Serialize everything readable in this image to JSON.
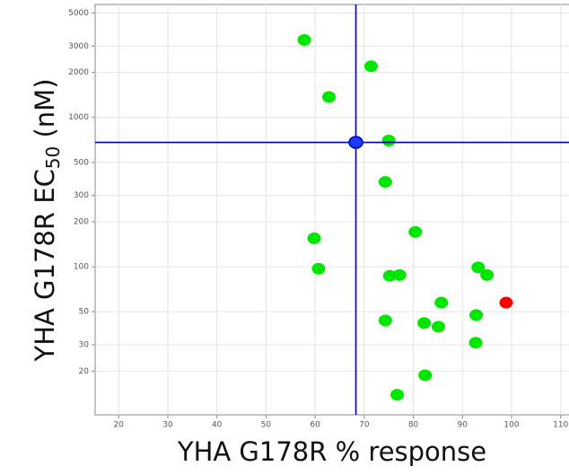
{
  "chart_data": {
    "type": "scatter",
    "xlabel": "YHA G178R % response",
    "ylabel": {
      "main": "YHA G178R EC",
      "sub": "50",
      "rest": " (nM)"
    },
    "xlim": [
      15.2,
      111.7
    ],
    "ylim": [
      10.2,
      5700
    ],
    "log_y": true,
    "grid": true,
    "xticks": [
      20,
      30,
      40,
      50,
      60,
      70,
      80,
      90,
      100,
      110
    ],
    "yticks": [
      20,
      30,
      50,
      100,
      200,
      300,
      500,
      1000,
      2000,
      3000,
      5000
    ],
    "series": [
      {
        "color": "#00e600",
        "x": [
          57.8,
          71.4,
          62.8,
          75.0,
          74.3,
          80.4,
          59.8,
          60.7,
          75.2,
          77.2,
          93.2,
          95.0,
          85.7,
          92.8,
          74.3,
          82.2,
          85.1,
          92.7,
          82.4,
          76.7
        ],
        "values": [
          3300,
          2200,
          1370,
          700,
          370,
          171,
          155,
          97,
          87,
          88,
          99,
          88,
          57.5,
          47.5,
          43.7,
          42,
          39.7,
          31,
          18.8,
          13.9
        ]
      },
      {
        "color": "#ff0000",
        "x": [
          98.9
        ],
        "values": [
          57.5
        ]
      },
      {
        "color": "#1a3cff",
        "x": [
          68.3
        ],
        "values": [
          680
        ],
        "crosshair": true,
        "crosshair_color": "#0000b4"
      }
    ]
  }
}
